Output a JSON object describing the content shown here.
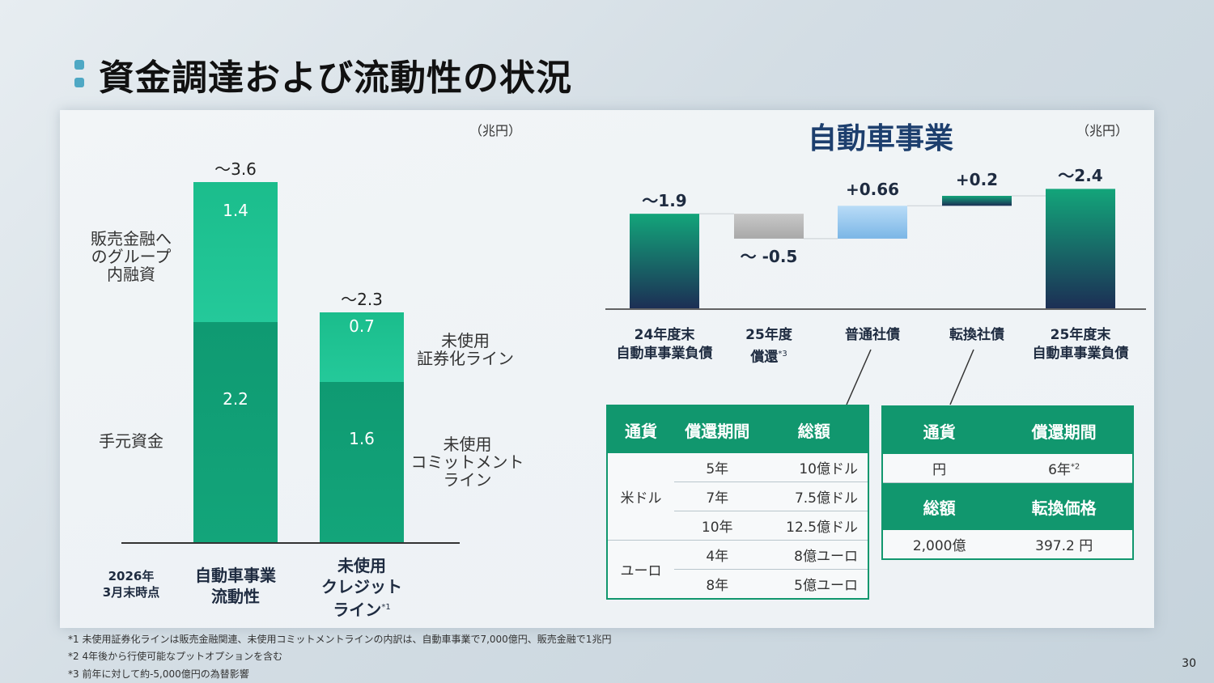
{
  "title": "資金調達および流動性の状況",
  "left_unit": "（兆円）",
  "right_unit": "（兆円）",
  "right_title": "自動車事業",
  "date_label": "2026年\n3月末時点",
  "chart_data": [
    {
      "type": "bar",
      "stacked": true,
      "categories": [
        "自動車事業\n流動性",
        "未使用\nクレジット\nライン"
      ],
      "category_footnotes": [
        "",
        "*1"
      ],
      "totals": [
        "～3.6",
        "～2.3"
      ],
      "series": [
        {
          "values": [
            2.2,
            1.6
          ],
          "color": "#13a57a"
        },
        {
          "values": [
            1.4,
            0.7
          ],
          "color": "#22c496"
        }
      ],
      "segment_labels": [
        [
          "2.2",
          "1.4"
        ],
        [
          "1.6",
          "0.7"
        ]
      ],
      "side_labels": {
        "left": [
          "販売金融へ\nのグループ\n内融資",
          "手元資金"
        ],
        "right": [
          "未使用\n証券化ライン",
          "未使用\nコミットメント\nライン"
        ]
      }
    },
    {
      "type": "waterfall",
      "categories": [
        "24年度末\n自動車事業負債",
        "25年度\n償還",
        "普通社債",
        "転換社債",
        "25年度末\n自動車事業負債"
      ],
      "category_footnotes": [
        "",
        "*3",
        "",
        "",
        ""
      ],
      "values": [
        1.9,
        -0.5,
        0.66,
        0.2,
        2.4
      ],
      "value_labels": [
        "～1.9",
        "～ -0.5",
        "+0.66",
        "+0.2",
        "～2.4"
      ],
      "colors": [
        "#13a57a",
        "#b8b8b8",
        "#8cc4ee",
        "#13a57a",
        "#13a57a"
      ]
    }
  ],
  "bond_table": {
    "headers": [
      "通貨",
      "償還期間",
      "総額"
    ],
    "groups": [
      {
        "currency": "米ドル",
        "rows": [
          [
            "5年",
            "10億ドル"
          ],
          [
            "7年",
            "7.5億ドル"
          ],
          [
            "10年",
            "12.5億ドル"
          ]
        ]
      },
      {
        "currency": "ユーロ",
        "rows": [
          [
            "4年",
            "8億ユーロ"
          ],
          [
            "8年",
            "5億ユーロ"
          ]
        ]
      }
    ]
  },
  "convertible_table": {
    "headers": [
      "通貨",
      "償還期間"
    ],
    "row1": [
      "円",
      "6年"
    ],
    "row1_footnote": "*2",
    "headers2": [
      "総額",
      "転換価格"
    ],
    "row2": [
      "2,000億",
      "397.2 円"
    ]
  },
  "footnotes": [
    "*1 未使用証券化ラインは販売金融関連、未使用コミットメントラインの内訳は、自動車事業で7,000億円、販売金融で1兆円",
    "*2 4年後から行使可能なプットオプションを含む",
    "*3 前年に対して約-5,000億円の為替影響"
  ],
  "page_number": "30"
}
